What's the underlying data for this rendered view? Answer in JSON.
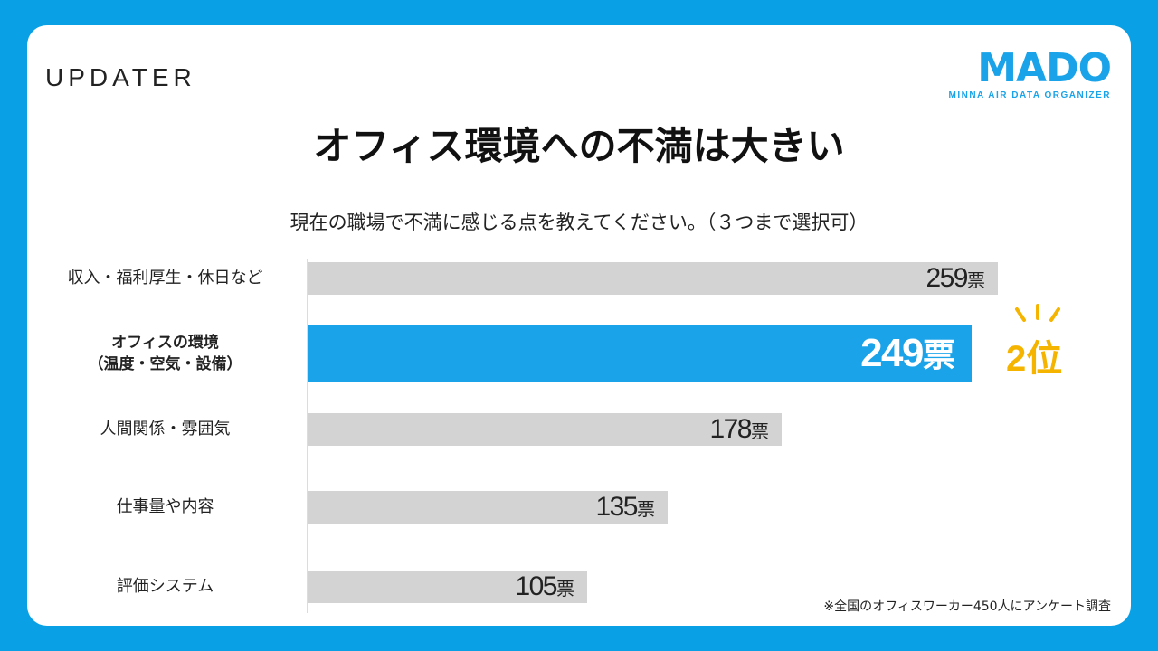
{
  "brand_left": "UPDATER",
  "brand_right": {
    "name": "MADO",
    "tagline": "MINNA AIR DATA ORGANIZER"
  },
  "title": "オフィス環境への不満は大きい",
  "subtitle": "現在の職場で不満に感じる点を教えてください。（３つまで選択可）",
  "rank_label": "2位",
  "footnote": "※全国のオフィスワーカー450人にアンケート調査",
  "colors": {
    "background": "#0aa0e6",
    "highlight": "#1aa3e8",
    "bar": "#d3d3d3",
    "rank": "#f5b400"
  },
  "chart_data": {
    "type": "bar",
    "orientation": "horizontal",
    "unit": "票",
    "categories": [
      "収入・福利厚生・休日など",
      "オフィスの環境\n（温度・空気・設備）",
      "人間関係・雰囲気",
      "仕事量や内容",
      "評価システム"
    ],
    "values": [
      259,
      249,
      178,
      135,
      105
    ],
    "highlight_index": 1,
    "xlim": [
      0,
      259
    ],
    "grid": false
  }
}
